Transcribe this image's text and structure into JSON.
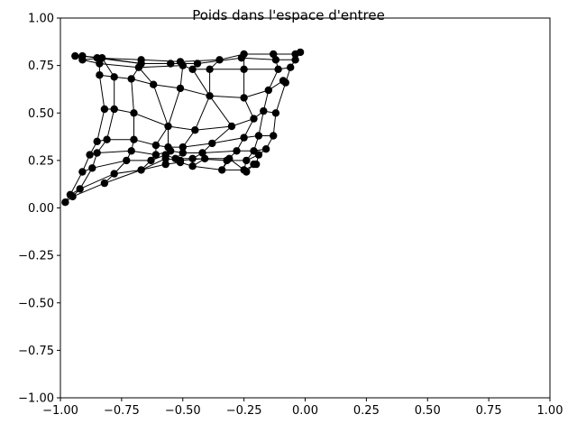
{
  "chart_data": {
    "type": "line",
    "title": "Poids dans l'espace d'entree",
    "xlabel": "",
    "ylabel": "",
    "xlim": [
      -1.0,
      1.0
    ],
    "ylim": [
      -1.0,
      1.0
    ],
    "x_ticks": [
      "−1.00",
      "−0.75",
      "−0.50",
      "−0.25",
      "0.00",
      "0.25",
      "0.50",
      "0.75",
      "1.00"
    ],
    "y_ticks": [
      "−1.00",
      "−0.75",
      "−0.50",
      "−0.25",
      "0.00",
      "0.25",
      "0.50",
      "0.75",
      "1.00"
    ],
    "grid": false,
    "legend": "none",
    "line_color": "#000000",
    "marker_color": "#000000",
    "grid_rows": [
      [
        [
          -0.94,
          0.8
        ],
        [
          -0.91,
          0.8
        ],
        [
          -0.85,
          0.79
        ],
        [
          -0.67,
          0.78
        ],
        [
          -0.51,
          0.77
        ],
        [
          -0.35,
          0.78
        ],
        [
          -0.25,
          0.81
        ],
        [
          -0.13,
          0.81
        ],
        [
          -0.04,
          0.81
        ],
        [
          -0.02,
          0.82
        ]
      ],
      [
        [
          -0.91,
          0.78
        ],
        [
          -0.83,
          0.79
        ],
        [
          -0.67,
          0.76
        ],
        [
          -0.55,
          0.76
        ],
        [
          -0.44,
          0.76
        ],
        [
          -0.26,
          0.79
        ],
        [
          -0.12,
          0.78
        ],
        [
          -0.04,
          0.78
        ]
      ],
      [
        [
          -0.84,
          0.76
        ],
        [
          -0.68,
          0.74
        ],
        [
          -0.5,
          0.75
        ],
        [
          -0.46,
          0.73
        ],
        [
          -0.39,
          0.73
        ],
        [
          -0.25,
          0.73
        ],
        [
          -0.11,
          0.73
        ],
        [
          -0.06,
          0.74
        ]
      ],
      [
        [
          -0.84,
          0.7
        ],
        [
          -0.78,
          0.69
        ],
        [
          -0.71,
          0.68
        ],
        [
          -0.62,
          0.65
        ],
        [
          -0.51,
          0.63
        ],
        [
          -0.39,
          0.59
        ],
        [
          -0.25,
          0.58
        ],
        [
          -0.15,
          0.62
        ],
        [
          -0.09,
          0.67
        ],
        [
          -0.08,
          0.66
        ]
      ],
      [
        [
          -0.82,
          0.52
        ],
        [
          -0.78,
          0.52
        ],
        [
          -0.7,
          0.5
        ],
        [
          -0.56,
          0.43
        ],
        [
          -0.45,
          0.41
        ],
        [
          -0.3,
          0.43
        ],
        [
          -0.21,
          0.47
        ],
        [
          -0.17,
          0.51
        ],
        [
          -0.12,
          0.5
        ]
      ],
      [
        [
          -0.85,
          0.35
        ],
        [
          -0.81,
          0.36
        ],
        [
          -0.7,
          0.36
        ],
        [
          -0.61,
          0.33
        ],
        [
          -0.56,
          0.32
        ],
        [
          -0.5,
          0.32
        ],
        [
          -0.38,
          0.34
        ],
        [
          -0.25,
          0.37
        ],
        [
          -0.19,
          0.38
        ],
        [
          -0.13,
          0.38
        ]
      ],
      [
        [
          -0.88,
          0.28
        ],
        [
          -0.85,
          0.29
        ],
        [
          -0.71,
          0.3
        ],
        [
          -0.61,
          0.28
        ],
        [
          -0.55,
          0.3
        ],
        [
          -0.5,
          0.29
        ],
        [
          -0.42,
          0.29
        ],
        [
          -0.28,
          0.3
        ],
        [
          -0.21,
          0.3
        ],
        [
          -0.16,
          0.31
        ]
      ],
      [
        [
          -0.91,
          0.19
        ],
        [
          -0.87,
          0.21
        ],
        [
          -0.73,
          0.25
        ],
        [
          -0.63,
          0.25
        ],
        [
          -0.57,
          0.28
        ],
        [
          -0.53,
          0.26
        ],
        [
          -0.46,
          0.26
        ],
        [
          -0.32,
          0.25
        ],
        [
          -0.24,
          0.25
        ],
        [
          -0.19,
          0.28
        ]
      ],
      [
        [
          -0.96,
          0.07
        ],
        [
          -0.92,
          0.1
        ],
        [
          -0.78,
          0.18
        ],
        [
          -0.67,
          0.2
        ],
        [
          -0.57,
          0.23
        ],
        [
          -0.51,
          0.24
        ],
        [
          -0.46,
          0.22
        ],
        [
          -0.34,
          0.2
        ],
        [
          -0.25,
          0.2
        ],
        [
          -0.2,
          0.23
        ]
      ],
      [
        [
          -0.98,
          0.03
        ],
        [
          -0.95,
          0.06
        ],
        [
          -0.82,
          0.13
        ],
        [
          -0.67,
          0.2
        ],
        [
          -0.57,
          0.26
        ],
        [
          -0.51,
          0.25
        ],
        [
          -0.41,
          0.26
        ],
        [
          -0.31,
          0.26
        ],
        [
          -0.24,
          0.19
        ],
        [
          -0.21,
          0.23
        ]
      ]
    ],
    "grid_cols": [
      [
        [
          -0.94,
          0.8
        ],
        [
          -0.91,
          0.78
        ],
        [
          -0.84,
          0.76
        ],
        [
          -0.84,
          0.7
        ],
        [
          -0.82,
          0.52
        ],
        [
          -0.85,
          0.35
        ],
        [
          -0.88,
          0.28
        ],
        [
          -0.91,
          0.19
        ],
        [
          -0.96,
          0.07
        ],
        [
          -0.98,
          0.03
        ]
      ],
      [
        [
          -0.91,
          0.8
        ],
        [
          -0.83,
          0.79
        ],
        [
          -0.78,
          0.69
        ],
        [
          -0.78,
          0.52
        ],
        [
          -0.81,
          0.36
        ],
        [
          -0.85,
          0.29
        ],
        [
          -0.87,
          0.21
        ],
        [
          -0.92,
          0.1
        ],
        [
          -0.95,
          0.06
        ]
      ],
      [
        [
          -0.85,
          0.79
        ],
        [
          -0.67,
          0.76
        ],
        [
          -0.71,
          0.68
        ],
        [
          -0.7,
          0.5
        ],
        [
          -0.7,
          0.36
        ],
        [
          -0.71,
          0.3
        ],
        [
          -0.73,
          0.25
        ],
        [
          -0.78,
          0.18
        ],
        [
          -0.82,
          0.13
        ]
      ],
      [
        [
          -0.67,
          0.78
        ],
        [
          -0.68,
          0.74
        ],
        [
          -0.62,
          0.65
        ],
        [
          -0.56,
          0.43
        ],
        [
          -0.61,
          0.33
        ],
        [
          -0.61,
          0.28
        ],
        [
          -0.63,
          0.25
        ],
        [
          -0.67,
          0.2
        ]
      ],
      [
        [
          -0.51,
          0.77
        ],
        [
          -0.5,
          0.75
        ],
        [
          -0.51,
          0.63
        ],
        [
          -0.56,
          0.43
        ],
        [
          -0.56,
          0.32
        ],
        [
          -0.55,
          0.3
        ],
        [
          -0.57,
          0.28
        ],
        [
          -0.57,
          0.23
        ],
        [
          -0.57,
          0.26
        ]
      ],
      [
        [
          -0.44,
          0.76
        ],
        [
          -0.46,
          0.73
        ],
        [
          -0.39,
          0.59
        ],
        [
          -0.45,
          0.41
        ],
        [
          -0.5,
          0.32
        ],
        [
          -0.5,
          0.29
        ],
        [
          -0.53,
          0.26
        ],
        [
          -0.51,
          0.24
        ],
        [
          -0.51,
          0.25
        ]
      ],
      [
        [
          -0.35,
          0.78
        ],
        [
          -0.39,
          0.73
        ],
        [
          -0.39,
          0.59
        ],
        [
          -0.3,
          0.43
        ],
        [
          -0.38,
          0.34
        ],
        [
          -0.42,
          0.29
        ],
        [
          -0.46,
          0.26
        ],
        [
          -0.46,
          0.22
        ],
        [
          -0.41,
          0.26
        ]
      ],
      [
        [
          -0.25,
          0.81
        ],
        [
          -0.25,
          0.73
        ],
        [
          -0.25,
          0.58
        ],
        [
          -0.21,
          0.47
        ],
        [
          -0.25,
          0.37
        ],
        [
          -0.28,
          0.3
        ],
        [
          -0.32,
          0.25
        ],
        [
          -0.34,
          0.2
        ],
        [
          -0.31,
          0.26
        ]
      ],
      [
        [
          -0.13,
          0.81
        ],
        [
          -0.12,
          0.78
        ],
        [
          -0.11,
          0.73
        ],
        [
          -0.15,
          0.62
        ],
        [
          -0.17,
          0.51
        ],
        [
          -0.19,
          0.38
        ],
        [
          -0.21,
          0.3
        ],
        [
          -0.24,
          0.25
        ],
        [
          -0.25,
          0.2
        ],
        [
          -0.24,
          0.19
        ]
      ],
      [
        [
          -0.02,
          0.82
        ],
        [
          -0.04,
          0.78
        ],
        [
          -0.06,
          0.74
        ],
        [
          -0.08,
          0.66
        ],
        [
          -0.12,
          0.5
        ],
        [
          -0.13,
          0.38
        ],
        [
          -0.16,
          0.31
        ],
        [
          -0.19,
          0.28
        ],
        [
          -0.2,
          0.23
        ],
        [
          -0.21,
          0.23
        ]
      ]
    ]
  }
}
